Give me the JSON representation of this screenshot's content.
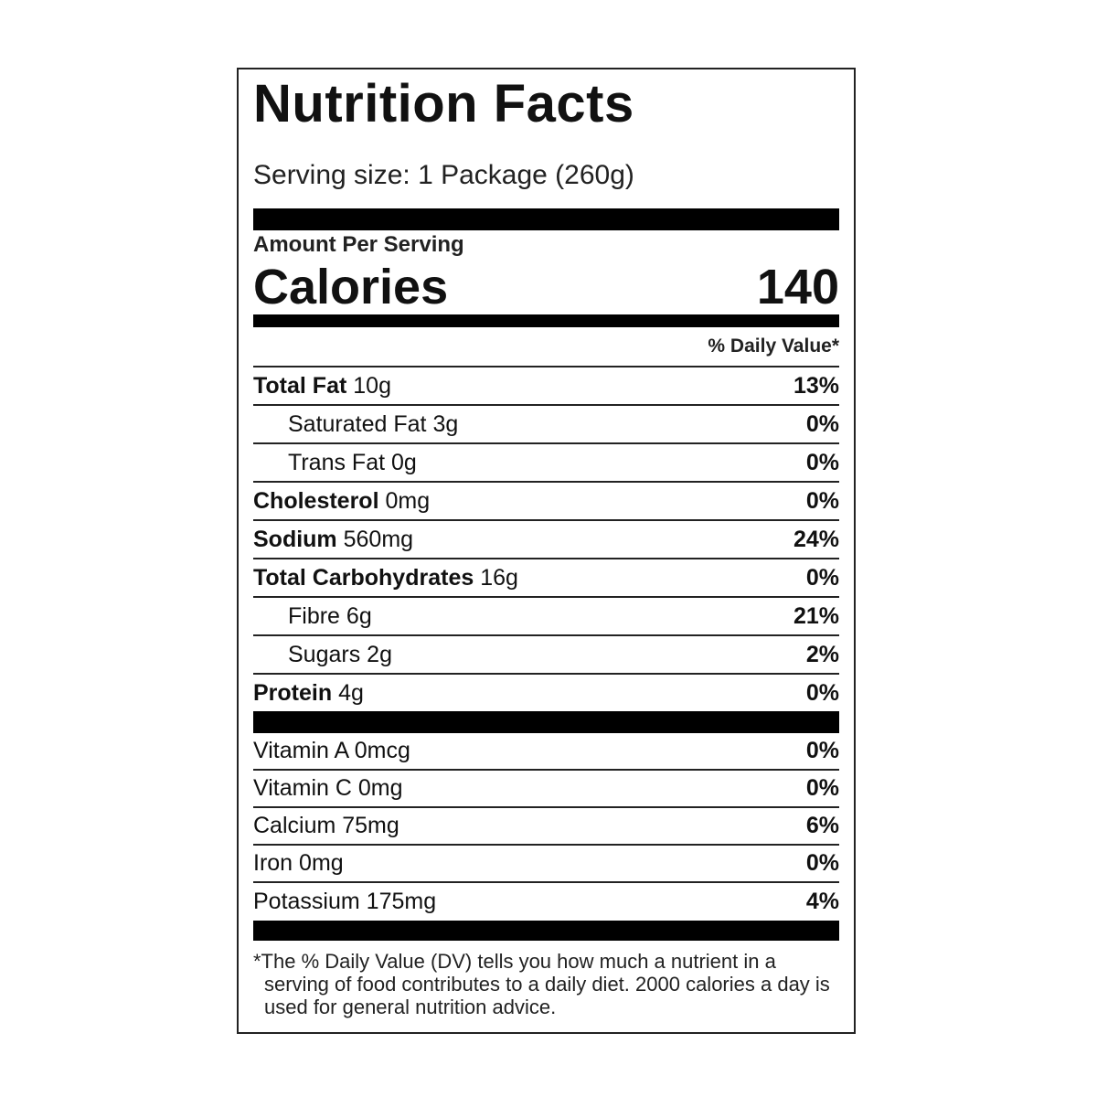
{
  "title": "Nutrition Facts",
  "serving_size": "Serving size: 1 Package (260g)",
  "amount_per_serving": "Amount Per Serving",
  "calories": {
    "label": "Calories",
    "value": 140
  },
  "daily_value_header": "% Daily Value*",
  "nutrients": [
    {
      "name": "Total Fat",
      "amount": "10g",
      "dv": "13%",
      "bold": true,
      "indent": false
    },
    {
      "name": "Saturated Fat",
      "amount": "3g",
      "dv": "0%",
      "bold": false,
      "indent": true
    },
    {
      "name": "Trans Fat",
      "amount": "0g",
      "dv": "0%",
      "bold": false,
      "indent": true
    },
    {
      "name": "Cholesterol",
      "amount": "0mg",
      "dv": "0%",
      "bold": true,
      "indent": false
    },
    {
      "name": "Sodium",
      "amount": "560mg",
      "dv": "24%",
      "bold": true,
      "indent": false
    },
    {
      "name": "Total Carbohydrates",
      "amount": "16g",
      "dv": "0%",
      "bold": true,
      "indent": false
    },
    {
      "name": "Fibre",
      "amount": "6g",
      "dv": "21%",
      "bold": false,
      "indent": true
    },
    {
      "name": "Sugars",
      "amount": "2g",
      "dv": "2%",
      "bold": false,
      "indent": true
    },
    {
      "name": "Protein",
      "amount": "4g",
      "dv": "0%",
      "bold": true,
      "indent": false
    }
  ],
  "vitamins": [
    {
      "name": "Vitamin A",
      "amount": "0mcg",
      "dv": "0%"
    },
    {
      "name": "Vitamin C",
      "amount": "0mg",
      "dv": "0%"
    },
    {
      "name": "Calcium",
      "amount": "75mg",
      "dv": "6%"
    },
    {
      "name": "Iron",
      "amount": "0mg",
      "dv": "0%"
    },
    {
      "name": "Potassium",
      "amount": "175mg",
      "dv": "4%"
    }
  ],
  "footnote": "*The % Daily Value (DV) tells you how much a nutrient in a serving of food contributes to a daily diet. 2000 calories a day is used for general nutrition advice."
}
